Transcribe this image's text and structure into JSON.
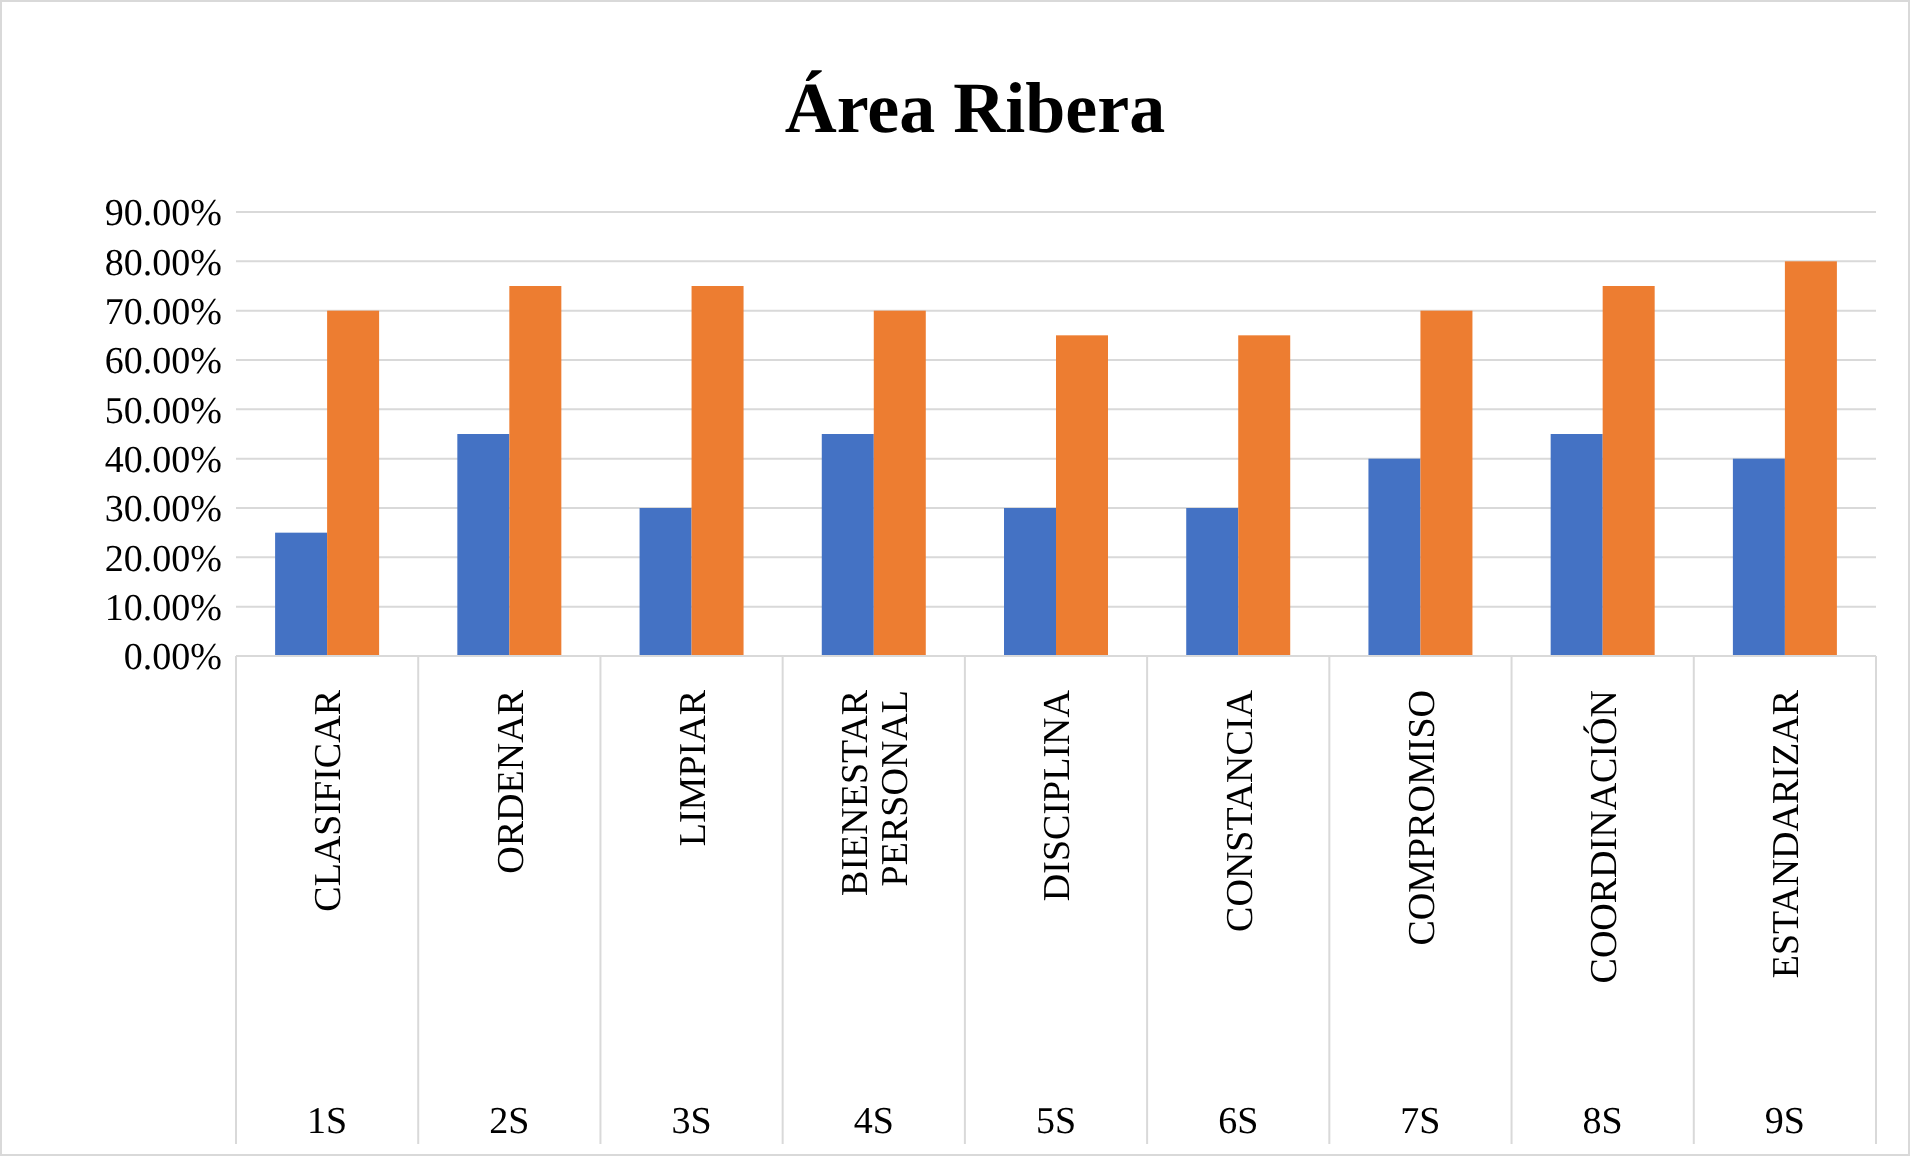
{
  "chart_data": {
    "type": "bar",
    "title": "Área Ribera",
    "categories": [
      "CLASIFICAR",
      "ORDENAR",
      "LIMPIAR",
      "BIENESTAR PERSONAL",
      "DISCIPLINA",
      "CONSTANCIA",
      "COMPROMISO",
      "COORDINACIÓN",
      "ESTANDARIZAR"
    ],
    "annotations": [
      "1S",
      "2S",
      "3S",
      "4S",
      "5S",
      "6S",
      "7S",
      "8S",
      "9S"
    ],
    "series": [
      {
        "color": "#4472c4",
        "values": [
          25,
          45,
          30,
          45,
          30,
          30,
          40,
          45,
          40
        ]
      },
      {
        "color": "#ed7d31",
        "values": [
          70,
          75,
          75,
          70,
          65,
          65,
          70,
          75,
          80
        ]
      }
    ],
    "ylim": [
      0,
      90
    ],
    "yticks": [
      {
        "value": 0,
        "label": "0.00%"
      },
      {
        "value": 10,
        "label": "10.00%"
      },
      {
        "value": 20,
        "label": "20.00%"
      },
      {
        "value": 30,
        "label": "30.00%"
      },
      {
        "value": 40,
        "label": "40.00%"
      },
      {
        "value": 50,
        "label": "50.00%"
      },
      {
        "value": 60,
        "label": "60.00%"
      },
      {
        "value": 70,
        "label": "70.00%"
      },
      {
        "value": 80,
        "label": "80.00%"
      },
      {
        "value": 90,
        "label": "90.00%"
      }
    ],
    "grid": true
  }
}
